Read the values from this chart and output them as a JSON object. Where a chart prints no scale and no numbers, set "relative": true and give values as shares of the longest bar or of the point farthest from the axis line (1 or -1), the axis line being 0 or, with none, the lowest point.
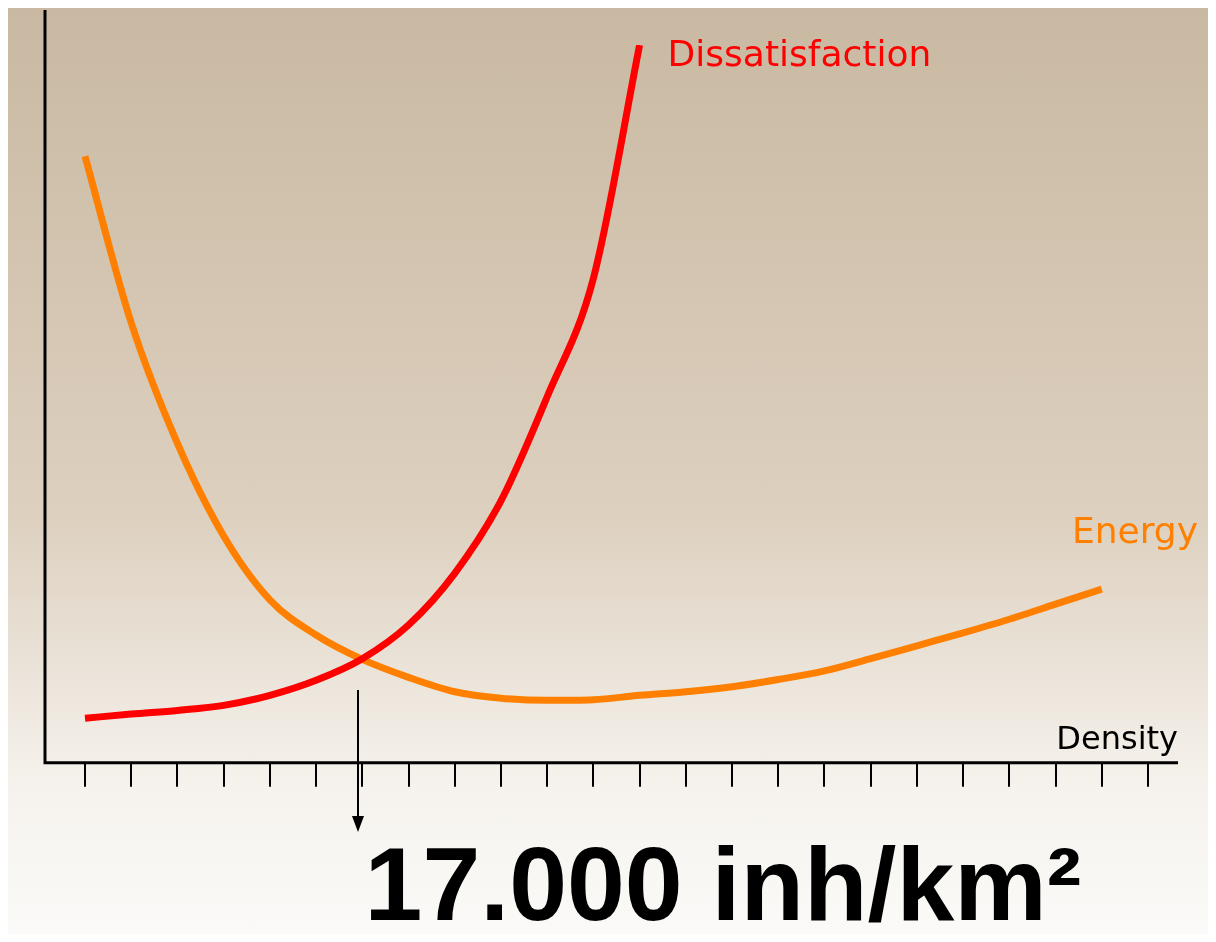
{
  "chart_data": {
    "type": "line",
    "relative": true,
    "xlabel": "Density",
    "categories": [
      null,
      null,
      null,
      null,
      null,
      null,
      null,
      null,
      null,
      null,
      null,
      null,
      null,
      null,
      null,
      null,
      null,
      null,
      null,
      null,
      null,
      null,
      null,
      null
    ],
    "series": [
      {
        "name": "Dissatisfaction",
        "color": "#ff0000",
        "values": [
          0.062,
          0.068,
          0.073,
          0.08,
          0.094,
          0.115,
          0.145,
          0.192,
          0.264,
          0.365,
          0.51,
          0.675,
          1.0,
          null,
          null,
          null,
          null,
          null,
          null,
          null,
          null,
          null,
          null,
          null
        ]
      },
      {
        "name": "Energy",
        "color": "#ff8000",
        "values": [
          0.845,
          0.613,
          0.445,
          0.316,
          0.227,
          0.178,
          0.144,
          0.119,
          0.099,
          0.09,
          0.087,
          0.088,
          0.094,
          0.099,
          0.106,
          0.116,
          0.128,
          0.145,
          0.163,
          0.181,
          0.2,
          0.221,
          0.242,
          null
        ]
      }
    ],
    "annotations": [
      "17.000 inh/km²"
    ],
    "legend": false,
    "grid": false,
    "marker": "none",
    "line_style": "solid"
  }
}
